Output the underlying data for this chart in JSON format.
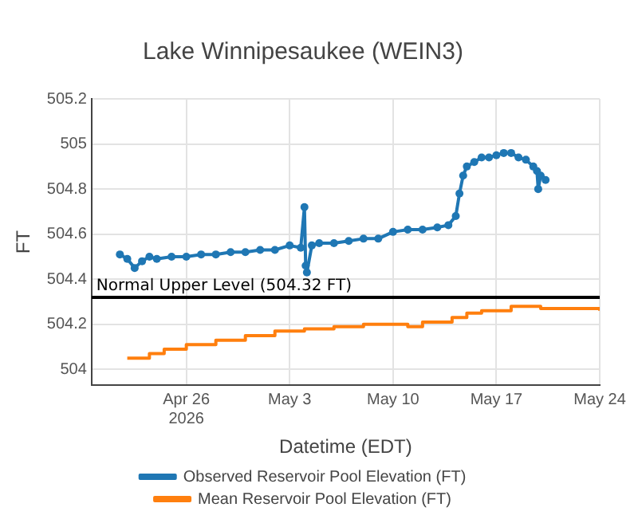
{
  "chart_data": {
    "type": "line",
    "title": "Lake Winnipesaukee (WEIN3)",
    "xlabel": "Datetime (EDT)",
    "ylabel": "FT",
    "xlim": [
      "2026-04-19T14:00",
      "2026-05-24T00:00"
    ],
    "xticks": [
      {
        "value": "2026-04-26",
        "label": "Apr 26\n2026"
      },
      {
        "value": "2026-05-03",
        "label": "May 3"
      },
      {
        "value": "2026-05-10",
        "label": "May 10"
      },
      {
        "value": "2026-05-17",
        "label": "May 17"
      },
      {
        "value": "2026-05-24",
        "label": "May 24"
      }
    ],
    "ylim": [
      503.93,
      505.2
    ],
    "yticks": [
      504,
      504.2,
      504.4,
      504.6,
      504.8,
      505,
      505.2
    ],
    "grid": true,
    "legend": "bottom",
    "ref_lines": [
      {
        "axis": "y",
        "value": 504.32,
        "label": "Normal Upper Level (504.32 FT)",
        "color": "#000000"
      }
    ],
    "series": [
      {
        "name": "Observed Reservoir Pool Elevation (FT)",
        "type": "line",
        "marker": "circle",
        "color": "#1f77b4",
        "x": [
          "2026-04-21T12:00",
          "2026-04-22T00:00",
          "2026-04-22T12:00",
          "2026-04-23T00:00",
          "2026-04-23T12:00",
          "2026-04-24T00:00",
          "2026-04-25T00:00",
          "2026-04-26T00:00",
          "2026-04-27T00:00",
          "2026-04-28T00:00",
          "2026-04-29T00:00",
          "2026-04-30T00:00",
          "2026-05-01T00:00",
          "2026-05-02T00:00",
          "2026-05-03T00:00",
          "2026-05-03T18:00",
          "2026-05-04T00:00",
          "2026-05-04T02:00",
          "2026-05-04T04:00",
          "2026-05-04T12:00",
          "2026-05-05T00:00",
          "2026-05-06T00:00",
          "2026-05-07T00:00",
          "2026-05-08T00:00",
          "2026-05-09T00:00",
          "2026-05-10T00:00",
          "2026-05-11T00:00",
          "2026-05-12T00:00",
          "2026-05-13T00:00",
          "2026-05-13T18:00",
          "2026-05-14T06:00",
          "2026-05-14T12:00",
          "2026-05-14T18:00",
          "2026-05-15T00:00",
          "2026-05-15T12:00",
          "2026-05-16T00:00",
          "2026-05-16T12:00",
          "2026-05-17T00:00",
          "2026-05-17T12:00",
          "2026-05-18T00:00",
          "2026-05-18T12:00",
          "2026-05-19T00:00",
          "2026-05-19T12:00",
          "2026-05-19T18:00",
          "2026-05-19T20:00",
          "2026-05-20T00:00",
          "2026-05-20T08:00"
        ],
        "values": [
          504.51,
          504.49,
          504.45,
          504.48,
          504.5,
          504.49,
          504.5,
          504.5,
          504.51,
          504.51,
          504.52,
          504.52,
          504.53,
          504.53,
          504.55,
          504.54,
          504.72,
          504.46,
          504.43,
          504.55,
          504.56,
          504.56,
          504.57,
          504.58,
          504.58,
          504.61,
          504.62,
          504.62,
          504.63,
          504.64,
          504.68,
          504.78,
          504.86,
          504.9,
          504.92,
          504.94,
          504.94,
          504.95,
          504.96,
          504.96,
          504.94,
          504.93,
          504.9,
          504.88,
          504.8,
          504.86,
          504.84
        ]
      },
      {
        "name": "Mean Reservoir Pool Elevation (FT)",
        "type": "step",
        "marker": "none",
        "color": "#ff7f0e",
        "x": [
          "2026-04-22T00:00",
          "2026-04-23T12:00",
          "2026-04-24T12:00",
          "2026-04-26T00:00",
          "2026-04-28T00:00",
          "2026-04-30T00:00",
          "2026-05-02T00:00",
          "2026-05-04T00:00",
          "2026-05-06T00:00",
          "2026-05-08T00:00",
          "2026-05-10T00:00",
          "2026-05-11T00:00",
          "2026-05-12T00:00",
          "2026-05-14T00:00",
          "2026-05-15T00:00",
          "2026-05-16T00:00",
          "2026-05-18T00:00",
          "2026-05-20T00:00",
          "2026-05-22T00:00",
          "2026-05-24T00:00"
        ],
        "values": [
          504.05,
          504.07,
          504.09,
          504.11,
          504.13,
          504.15,
          504.17,
          504.18,
          504.19,
          504.2,
          504.2,
          504.19,
          504.21,
          504.23,
          504.25,
          504.26,
          504.28,
          504.27,
          504.27,
          504.26
        ]
      }
    ]
  }
}
